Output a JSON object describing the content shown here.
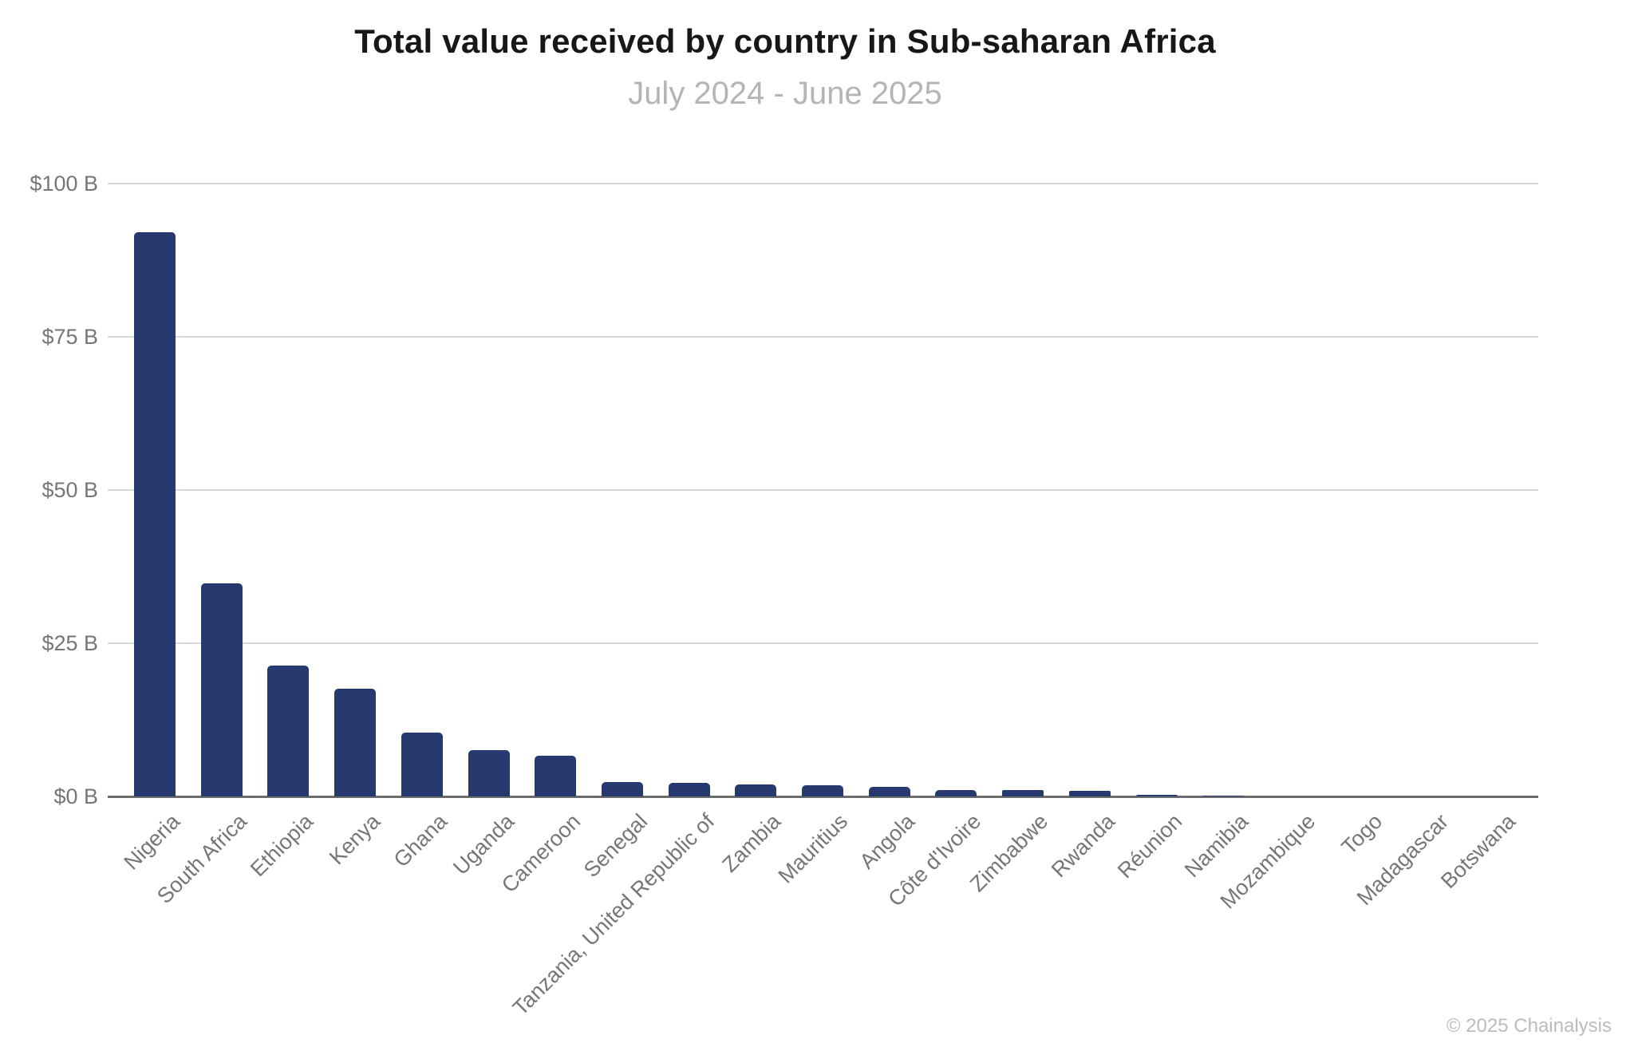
{
  "header": {
    "title": "Total value received by country in Sub-saharan Africa",
    "subtitle": "July 2024 - June 2025"
  },
  "footer": {
    "copyright": "© 2025 Chainalysis"
  },
  "chart_data": {
    "type": "bar",
    "title": "Total value received by country in Sub-saharan Africa",
    "subtitle": "July 2024 - June 2025",
    "categories": [
      "Nigeria",
      "South Africa",
      "Ethiopia",
      "Kenya",
      "Ghana",
      "Uganda",
      "Cameroon",
      "Senegal",
      "Tanzania, United Republic of",
      "Zambia",
      "Mauritius",
      "Angola",
      "Côte d'Ivoire",
      "Zimbabwe",
      "Rwanda",
      "Réunion",
      "Namibia",
      "Mozambique",
      "Togo",
      "Madagascar",
      "Botswana"
    ],
    "values": [
      92,
      34.8,
      21.3,
      17.6,
      10.4,
      7.6,
      6.7,
      2.4,
      2.15,
      2.0,
      1.8,
      1.5,
      1.1,
      1.0,
      0.95,
      0.2,
      0.18,
      0.05,
      0.05,
      0.03,
      0.02
    ],
    "unit": "USD billions",
    "xlabel": "",
    "ylabel": "",
    "ylim": [
      0,
      100
    ],
    "ytick_values": [
      0,
      25,
      50,
      75,
      100
    ],
    "ytick_labels": [
      "$0 B",
      "$25 B",
      "$50 B",
      "$75 B",
      "$100 B"
    ],
    "grid": "horizontal",
    "legend": "none",
    "bar_color": "#273A70"
  },
  "colors": {
    "bar": "#273A70",
    "title": "#171717",
    "subtitle": "#b4b4b4",
    "axis_labels": "#767676",
    "gridline": "#d9d9d9",
    "axis_line": "#6d6d6d",
    "copyright": "#bcbcbc",
    "background": "#ffffff"
  }
}
